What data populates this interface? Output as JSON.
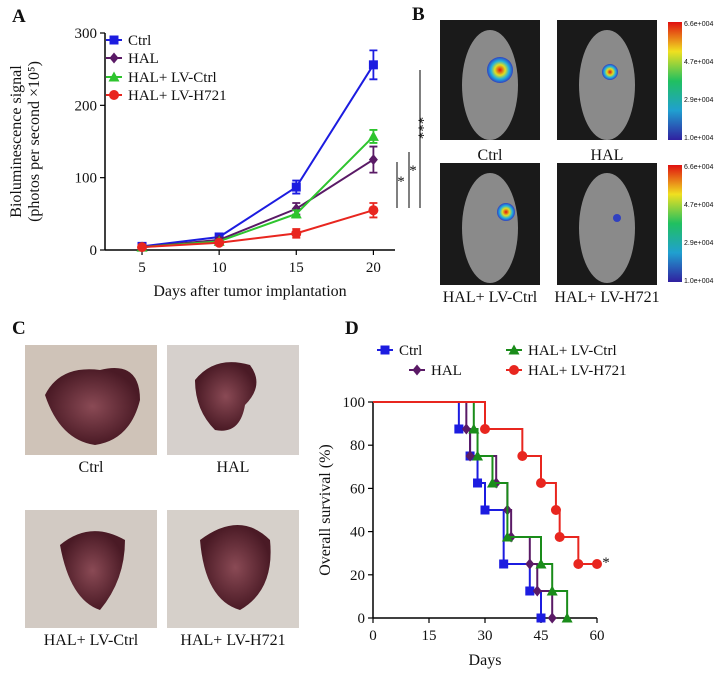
{
  "chart_data": [
    {
      "type": "line",
      "panel": "A",
      "xlabel": "Days after tumor implantation",
      "ylabel": [
        "Bioluminescence signal",
        "(photos per second ×10⁵)"
      ],
      "x": [
        5,
        10,
        15,
        20
      ],
      "xlim": [
        2.6,
        21.4
      ],
      "xticks": [
        5,
        10,
        15,
        20
      ],
      "ylim": [
        0,
        300
      ],
      "yticks": [
        0,
        100,
        200,
        300
      ],
      "series": [
        {
          "name": "Ctrl",
          "color": "#1c1ce0",
          "marker": "square",
          "values": [
            5,
            18,
            87,
            256
          ],
          "errors": [
            2,
            3,
            9,
            20
          ]
        },
        {
          "name": "HAL",
          "color": "#5a1a66",
          "marker": "diamond",
          "values": [
            4,
            14,
            57,
            125
          ],
          "errors": [
            2,
            3,
            8,
            18
          ]
        },
        {
          "name": "HAL+ LV-Ctrl",
          "color": "#2ec42e",
          "marker": "triangle",
          "values": [
            4,
            12,
            50,
            157
          ],
          "errors": [
            2,
            2,
            5,
            9
          ]
        },
        {
          "name": "HAL+ LV-H721",
          "color": "#e8261f",
          "marker": "circle",
          "values": [
            4,
            10,
            23,
            55
          ],
          "errors": [
            1,
            2,
            6,
            10
          ]
        }
      ],
      "annotations": [
        "*",
        "*",
        "***"
      ]
    },
    {
      "type": "step",
      "panel": "D",
      "xlabel": "Days",
      "ylabel": [
        "Overall survival (%)"
      ],
      "xlim": [
        0,
        60
      ],
      "xticks": [
        0,
        15,
        30,
        45,
        60
      ],
      "ylim": [
        0,
        100
      ],
      "yticks": [
        0,
        20,
        40,
        60,
        80,
        100
      ],
      "series": [
        {
          "name": "Ctrl",
          "color": "#1c1ce0",
          "marker": "square",
          "x": [
            0,
            23,
            26,
            28,
            30,
            35,
            42,
            45
          ],
          "values": [
            100,
            87.5,
            75,
            62.5,
            50,
            25,
            12.5,
            0
          ]
        },
        {
          "name": "HAL",
          "color": "#5a1a66",
          "marker": "diamond",
          "x": [
            0,
            25,
            26,
            33,
            36,
            37,
            42,
            44,
            48
          ],
          "values": [
            100,
            87.5,
            75,
            62.5,
            50,
            37.5,
            25,
            12.5,
            0
          ]
        },
        {
          "name": "HAL+ LV-Ctrl",
          "color": "#1a8c1a",
          "marker": "triangle",
          "x": [
            0,
            27,
            28,
            32,
            36,
            45,
            48,
            52
          ],
          "values": [
            100,
            87.5,
            75,
            62.5,
            37.5,
            25,
            12.5,
            0
          ]
        },
        {
          "name": "HAL+ LV-H721",
          "color": "#e8261f",
          "marker": "circle",
          "x": [
            0,
            30,
            40,
            45,
            49,
            50,
            55,
            60
          ],
          "values": [
            100,
            87.5,
            75,
            62.5,
            50,
            37.5,
            25,
            25
          ]
        }
      ],
      "annotations": [
        "*"
      ]
    }
  ],
  "image_panels": [
    {
      "panel": "B",
      "labels": [
        "Ctrl",
        "HAL",
        "HAL+ LV-Ctrl",
        "HAL+ LV-H721"
      ],
      "colorbar_ticks": [
        "6.6e+004",
        "4.7e+004",
        "2.9e+004",
        "1.0e+004"
      ]
    },
    {
      "panel": "C",
      "labels": [
        "Ctrl",
        "HAL",
        "HAL+ LV-Ctrl",
        "HAL+ LV-H721"
      ]
    }
  ]
}
